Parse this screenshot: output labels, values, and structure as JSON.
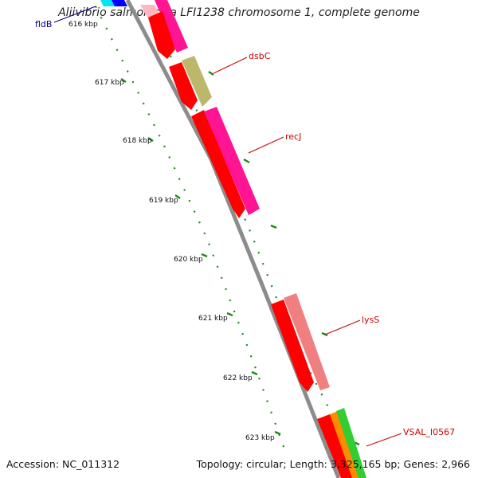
{
  "title": "Aliivibrio salmonicida LFI1238 chromosome 1, complete genome",
  "accession": "Accession: NC_011312",
  "summary": "Topology: circular; Length: 3,325,165 bp; Genes: 2,966",
  "ruler_ticks": [
    "616 kbp",
    "617 kbp",
    "618 kbp",
    "619 kbp",
    "620 kbp",
    "621 kbp",
    "622 kbp",
    "623 kbp"
  ],
  "gene_labels": [
    {
      "name": "fldB",
      "color": "#00008b"
    },
    {
      "name": "dsbC",
      "color": "#cc0000"
    },
    {
      "name": "recJ",
      "color": "#cc0000"
    },
    {
      "name": "lysS",
      "color": "#cc0000"
    },
    {
      "name": "VSAL_I0567",
      "color": "#cc0000"
    }
  ],
  "colors": {
    "backbone": "#8c8c8c",
    "cds": "#ff0000",
    "dsbC": "#bdb76b",
    "recJ": "#ff1493",
    "lysS": "#f08080",
    "tick_green": "#1a8a1a"
  }
}
